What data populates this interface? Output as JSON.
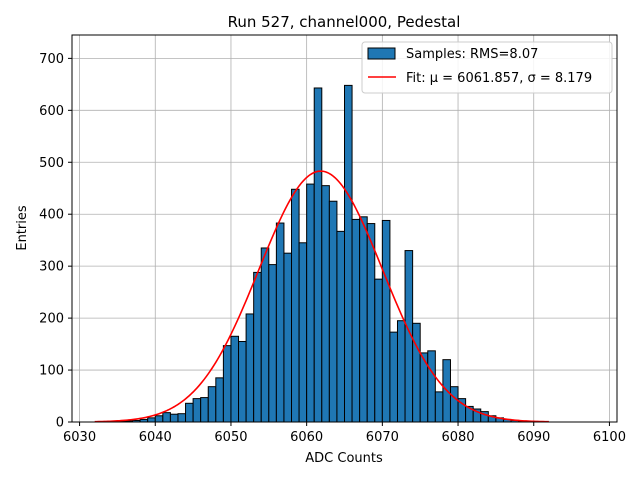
{
  "chart_data": {
    "type": "bar",
    "title": "Run 527, channel000, Pedestal",
    "xlabel": "ADC Counts",
    "ylabel": "Entries",
    "xlim": [
      6029,
      6101
    ],
    "ylim": [
      0,
      745
    ],
    "xticks": [
      6030,
      6040,
      6050,
      6060,
      6070,
      6080,
      6090,
      6100
    ],
    "yticks": [
      0,
      100,
      200,
      300,
      400,
      500,
      600,
      700
    ],
    "grid": true,
    "legend_position": "top-right",
    "bin_width": 1,
    "bins": {
      "x": [
        6034,
        6035,
        6036,
        6037,
        6038,
        6039,
        6040,
        6041,
        6042,
        6043,
        6044,
        6045,
        6046,
        6047,
        6048,
        6049,
        6050,
        6051,
        6052,
        6053,
        6054,
        6055,
        6056,
        6057,
        6058,
        6059,
        6060,
        6061,
        6062,
        6063,
        6064,
        6065,
        6066,
        6067,
        6068,
        6069,
        6070,
        6071,
        6072,
        6073,
        6074,
        6075,
        6076,
        6077,
        6078,
        6079,
        6080,
        6081,
        6082,
        6083,
        6084,
        6085,
        6086,
        6087,
        6088,
        6089,
        6090
      ],
      "y": [
        1,
        1,
        2,
        3,
        5,
        8,
        12,
        18,
        15,
        16,
        36,
        45,
        47,
        68,
        85,
        147,
        165,
        155,
        208,
        288,
        335,
        303,
        383,
        325,
        448,
        345,
        458,
        643,
        455,
        425,
        367,
        648,
        390,
        395,
        382,
        275,
        388,
        173,
        195,
        330,
        190,
        133,
        137,
        58,
        120,
        68,
        45,
        30,
        25,
        20,
        12,
        8,
        5,
        3,
        2,
        1,
        1
      ]
    },
    "series": [
      {
        "name": "Samples: RMS=8.07",
        "type": "histogram",
        "color": "#1f77b4"
      },
      {
        "name": "Fit: μ = 6061.857, σ = 8.179",
        "type": "line",
        "color": "#ff0000",
        "model": "gaussian",
        "mu": 6061.857,
        "sigma": 8.179,
        "amplitude": 483,
        "x_range": [
          6032,
          6092
        ]
      }
    ]
  }
}
